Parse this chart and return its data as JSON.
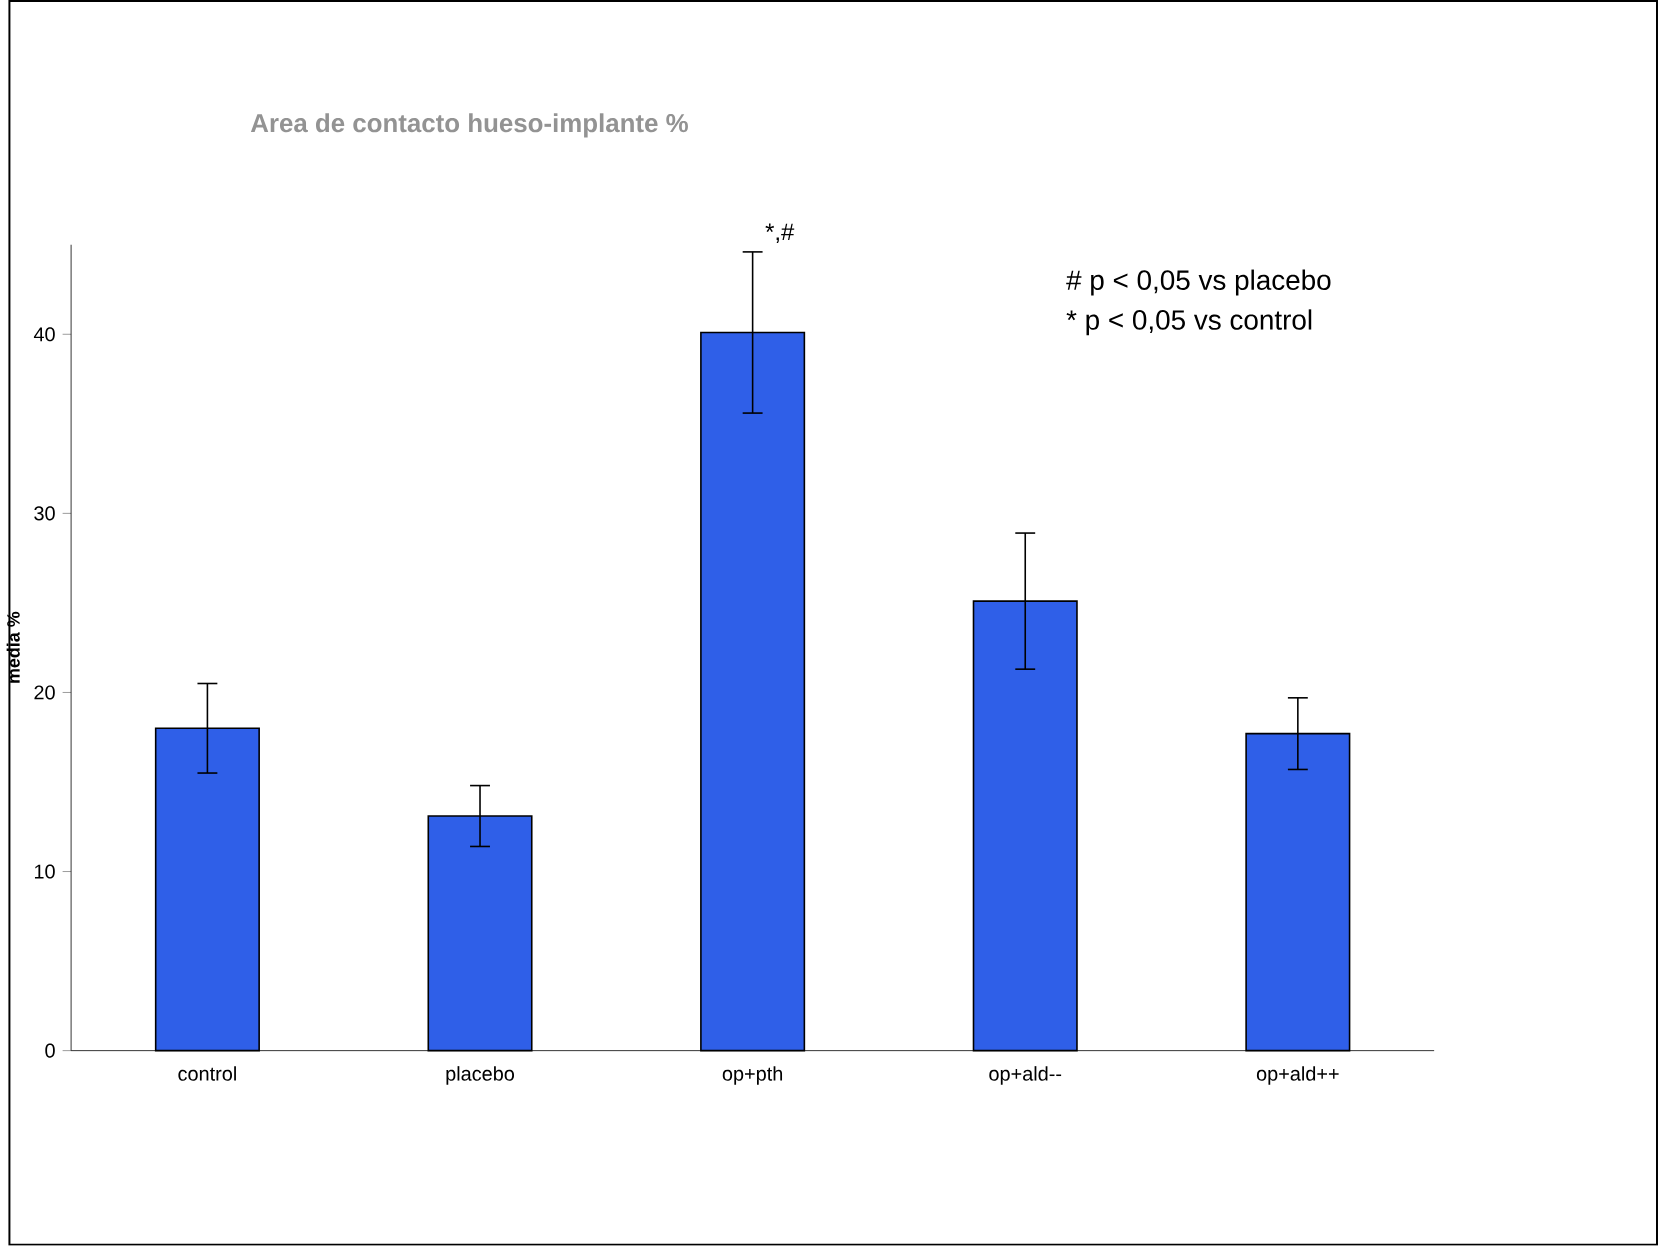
{
  "chart_data": {
    "type": "bar",
    "title": "Area de contacto hueso-implante %",
    "ylabel": "media %",
    "categories": [
      "control",
      "placebo",
      "op+pth",
      "op+ald--",
      "op+ald++"
    ],
    "values": [
      18.0,
      13.1,
      40.1,
      25.1,
      17.7
    ],
    "errors": [
      2.5,
      1.7,
      4.5,
      3.8,
      2.0
    ],
    "color": "#2f5fe8",
    "ylim": [
      0,
      45
    ],
    "yticks": [
      0,
      10,
      20,
      30,
      40
    ],
    "annotations": [
      {
        "text": "*,#",
        "x": "op+pth",
        "y": 44.7
      },
      "#  p < 0,05 vs placebo",
      "*  p < 0,05 vs control"
    ],
    "grid": false
  }
}
